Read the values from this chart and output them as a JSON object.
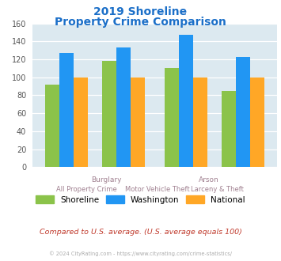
{
  "title_line1": "2019 Shoreline",
  "title_line2": "Property Crime Comparison",
  "title_color": "#1b6fc8",
  "shoreline": [
    92,
    118,
    110,
    85
  ],
  "washington": [
    127,
    133,
    147,
    123
  ],
  "national": [
    100,
    100,
    100,
    100
  ],
  "color_shoreline": "#8bc34a",
  "color_washington": "#2196f3",
  "color_national": "#ffa726",
  "ylim": [
    0,
    160
  ],
  "yticks": [
    0,
    20,
    40,
    60,
    80,
    100,
    120,
    140,
    160
  ],
  "bg_color": "#dce9f0",
  "footer_text": "© 2024 CityRating.com - https://www.cityrating.com/crime-statistics/",
  "note_text": "Compared to U.S. average. (U.S. average equals 100)",
  "note_color": "#c0392b",
  "footer_color": "#aaaaaa",
  "label_color": "#a08090",
  "top_label_color": "#a08090"
}
